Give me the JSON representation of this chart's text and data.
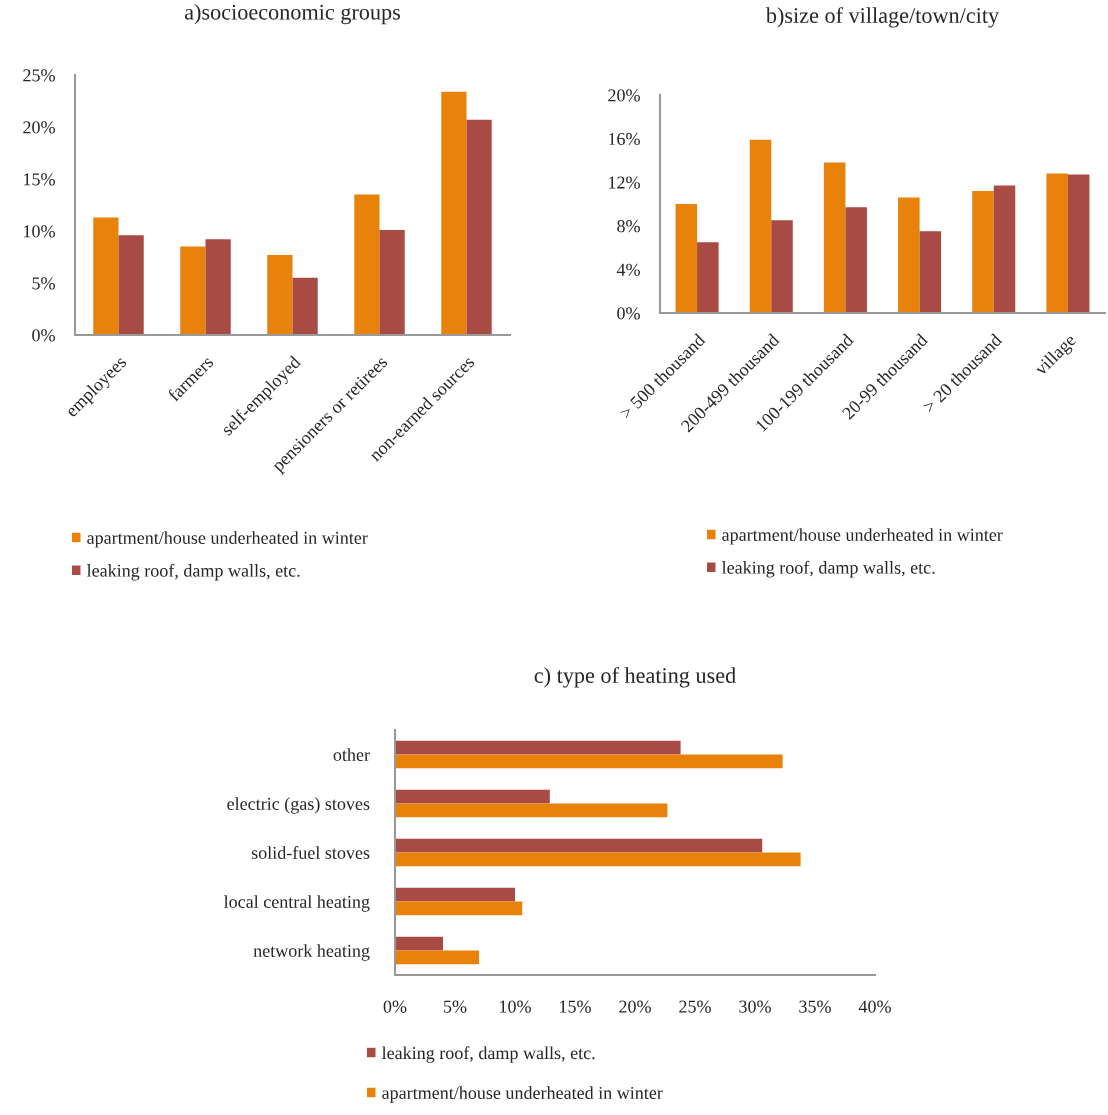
{
  "chart_data": [
    {
      "type": "bar",
      "title": "a)socioeconomic groups",
      "categories": [
        "employees",
        "farmers",
        "self-employed",
        "pensioners or retirees",
        "non-earned sources"
      ],
      "series": [
        {
          "name": "apartment/house underheated in winter",
          "color": "#e8820a",
          "values": [
            11.3,
            8.5,
            7.7,
            13.5,
            23.4
          ]
        },
        {
          "name": "leaking roof, damp walls, etc.",
          "color": "#a84b45",
          "values": [
            9.6,
            9.2,
            5.5,
            10.1,
            20.7
          ]
        }
      ],
      "ylim": [
        0,
        25
      ],
      "yticks": [
        {
          "value": 0,
          "label": "0%"
        },
        {
          "value": 5,
          "label": "5%"
        },
        {
          "value": 10,
          "label": "10%"
        },
        {
          "value": 15,
          "label": "15%"
        },
        {
          "value": 20,
          "label": "20%"
        },
        {
          "value": 25,
          "label": "25%"
        }
      ],
      "grid": false,
      "legend": "bottom"
    },
    {
      "type": "bar",
      "title": "b)size of village/town/city",
      "categories": [
        "> 500 thousand",
        "200-499 thousand",
        "100-199 thousand",
        "20-99 thousand",
        "> 20 thousand",
        "village"
      ],
      "series": [
        {
          "name": "apartment/house underheated in winter",
          "color": "#e8820a",
          "values": [
            10.0,
            15.9,
            13.8,
            10.6,
            11.2,
            12.8
          ]
        },
        {
          "name": "leaking roof, damp walls, etc.",
          "color": "#a84b45",
          "values": [
            6.5,
            8.5,
            9.7,
            7.5,
            11.7,
            12.7
          ]
        }
      ],
      "ylim": [
        0,
        20
      ],
      "yticks": [
        {
          "value": 0,
          "label": "0%"
        },
        {
          "value": 4,
          "label": "4%"
        },
        {
          "value": 8,
          "label": "8%"
        },
        {
          "value": 12,
          "label": "12%"
        },
        {
          "value": 16,
          "label": "16%"
        },
        {
          "value": 20,
          "label": "20%"
        }
      ],
      "grid": false,
      "legend": "bottom"
    },
    {
      "type": "bar",
      "orientation": "horizontal",
      "title": "c) type of heating used",
      "categories": [
        "other",
        "electric (gas) stoves",
        "solid-fuel stoves",
        "local central heating",
        "network heating"
      ],
      "series": [
        {
          "name": "leaking roof, damp walls, etc.",
          "color": "#a84b45",
          "values": [
            23.8,
            12.9,
            30.6,
            10.0,
            4.0
          ]
        },
        {
          "name": "apartment/house underheated in winter",
          "color": "#e8820a",
          "values": [
            32.3,
            22.7,
            33.8,
            10.6,
            7.0
          ]
        }
      ],
      "xlim": [
        0,
        40
      ],
      "xticks": [
        {
          "value": 0,
          "label": "0%"
        },
        {
          "value": 5,
          "label": "5%"
        },
        {
          "value": 10,
          "label": "10%"
        },
        {
          "value": 15,
          "label": "15%"
        },
        {
          "value": 20,
          "label": "20%"
        },
        {
          "value": 25,
          "label": "25%"
        },
        {
          "value": 30,
          "label": "30%"
        },
        {
          "value": 35,
          "label": "35%"
        },
        {
          "value": 40,
          "label": "40%"
        }
      ],
      "grid": false,
      "legend": "bottom"
    }
  ]
}
